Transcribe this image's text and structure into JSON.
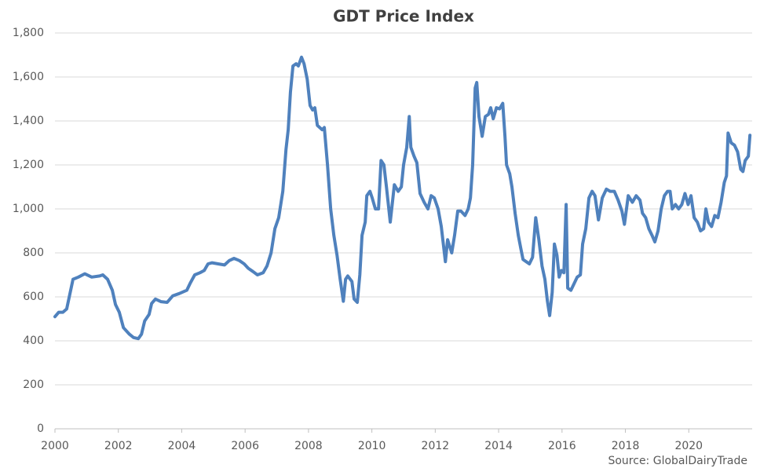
{
  "chart_data": {
    "type": "line",
    "title": "GDT Price Index",
    "annotation": "Source: GlobalDairyTrade",
    "color": "#4f81bd",
    "grid": true,
    "xlim": [
      2000,
      2022
    ],
    "xticks": [
      2000,
      2002,
      2004,
      2006,
      2008,
      2010,
      2012,
      2014,
      2016,
      2018,
      2020
    ],
    "ylim": [
      0,
      1800
    ],
    "yticks": [
      0,
      200,
      400,
      600,
      800,
      {
        "value": 1000,
        "label": "1,000"
      },
      {
        "value": 1200,
        "label": "1,200"
      },
      {
        "value": 1400,
        "label": "1,400"
      },
      {
        "value": 1600,
        "label": "1,600"
      },
      {
        "value": 1800,
        "label": "1,800"
      }
    ],
    "x": [
      2000,
      2000.12,
      2000.25,
      2000.37,
      2000.57,
      2000.74,
      2000.94,
      2001.16,
      2001.41,
      2001.51,
      2001.66,
      2001.81,
      2001.91,
      2002.03,
      2002.16,
      2002.35,
      2002.48,
      2002.63,
      2002.73,
      2002.83,
      2002.97,
      2003.05,
      2003.17,
      2003.35,
      2003.54,
      2003.72,
      2003.92,
      2004.16,
      2004.26,
      2004.41,
      2004.58,
      2004.71,
      2004.83,
      2004.96,
      2005.15,
      2005.35,
      2005.5,
      2005.65,
      2005.82,
      2005.97,
      2006.1,
      2006.25,
      2006.39,
      2006.57,
      2006.69,
      2006.82,
      2006.94,
      2007.06,
      2007.19,
      2007.29,
      2007.36,
      2007.43,
      2007.51,
      2007.61,
      2007.68,
      2007.78,
      2007.86,
      2007.96,
      2008.05,
      2008.13,
      2008.2,
      2008.28,
      2008.43,
      2008.5,
      2008.6,
      2008.7,
      2008.8,
      2008.9,
      2009.0,
      2009.1,
      2009.17,
      2009.24,
      2009.37,
      2009.44,
      2009.54,
      2009.62,
      2009.69,
      2009.79,
      2009.84,
      2009.94,
      2010.01,
      2010.11,
      2010.21,
      2010.29,
      2010.38,
      2010.46,
      2010.58,
      2010.71,
      2010.83,
      2010.93,
      2011.0,
      2011.1,
      2011.18,
      2011.23,
      2011.33,
      2011.42,
      2011.52,
      2011.65,
      2011.77,
      2011.87,
      2011.97,
      2012.09,
      2012.19,
      2012.32,
      2012.39,
      2012.52,
      2012.61,
      2012.71,
      2012.81,
      2012.94,
      2013.04,
      2013.11,
      2013.18,
      2013.26,
      2013.31,
      2013.38,
      2013.48,
      2013.58,
      2013.68,
      2013.75,
      2013.83,
      2013.93,
      2014.03,
      2014.13,
      2014.2,
      2014.25,
      2014.35,
      2014.42,
      2014.52,
      2014.62,
      2014.7,
      2014.77,
      2014.87,
      2014.97,
      2015.07,
      2015.17,
      2015.27,
      2015.37,
      2015.46,
      2015.54,
      2015.61,
      2015.69,
      2015.76,
      2015.84,
      2015.91,
      2015.98,
      2016.06,
      2016.13,
      2016.18,
      2016.28,
      2016.38,
      2016.48,
      2016.58,
      2016.65,
      2016.75,
      2016.85,
      2016.95,
      2017.04,
      2017.15,
      2017.27,
      2017.4,
      2017.52,
      2017.65,
      2017.77,
      2017.89,
      2017.97,
      2018.09,
      2018.22,
      2018.34,
      2018.46,
      2018.54,
      2018.64,
      2018.74,
      2018.84,
      2018.93,
      2019.03,
      2019.13,
      2019.23,
      2019.33,
      2019.41,
      2019.48,
      2019.58,
      2019.68,
      2019.78,
      2019.88,
      2019.98,
      2020.07,
      2020.17,
      2020.27,
      2020.37,
      2020.47,
      2020.54,
      2020.62,
      2020.72,
      2020.82,
      2020.92,
      2021.02,
      2021.12,
      2021.19,
      2021.24,
      2021.34,
      2021.44,
      2021.54,
      2021.64,
      2021.71,
      2021.78,
      2021.88,
      2021.93
    ],
    "values": [
      510,
      530,
      530,
      545,
      680,
      690,
      705,
      690,
      695,
      700,
      680,
      630,
      565,
      530,
      460,
      430,
      415,
      410,
      430,
      490,
      520,
      570,
      590,
      578,
      575,
      605,
      615,
      630,
      660,
      700,
      710,
      720,
      750,
      755,
      750,
      745,
      765,
      775,
      765,
      750,
      730,
      715,
      700,
      710,
      740,
      800,
      910,
      960,
      1080,
      1270,
      1360,
      1530,
      1650,
      1660,
      1650,
      1690,
      1660,
      1590,
      1470,
      1450,
      1460,
      1380,
      1360,
      1370,
      1200,
      1000,
      880,
      790,
      680,
      580,
      680,
      695,
      670,
      590,
      575,
      700,
      880,
      940,
      1060,
      1080,
      1050,
      1000,
      1000,
      1220,
      1200,
      1100,
      940,
      1110,
      1080,
      1100,
      1200,
      1280,
      1420,
      1280,
      1240,
      1210,
      1070,
      1030,
      1000,
      1060,
      1050,
      1000,
      920,
      760,
      860,
      800,
      880,
      990,
      990,
      970,
      1000,
      1050,
      1200,
      1550,
      1575,
      1420,
      1330,
      1420,
      1430,
      1460,
      1410,
      1460,
      1455,
      1480,
      1330,
      1200,
      1160,
      1100,
      980,
      880,
      820,
      770,
      760,
      750,
      780,
      960,
      860,
      740,
      680,
      580,
      515,
      620,
      840,
      790,
      690,
      720,
      710,
      1020,
      640,
      630,
      660,
      690,
      700,
      840,
      910,
      1050,
      1080,
      1060,
      950,
      1050,
      1090,
      1080,
      1080,
      1040,
      990,
      930,
      1060,
      1030,
      1060,
      1040,
      980,
      960,
      910,
      880,
      850,
      900,
      1000,
      1060,
      1080,
      1080,
      1000,
      1020,
      1000,
      1020,
      1070,
      1020,
      1060,
      960,
      940,
      900,
      910,
      1000,
      940,
      920,
      970,
      960,
      1030,
      1120,
      1150,
      1345,
      1300,
      1290,
      1260,
      1180,
      1170,
      1220,
      1240,
      1335
    ]
  }
}
